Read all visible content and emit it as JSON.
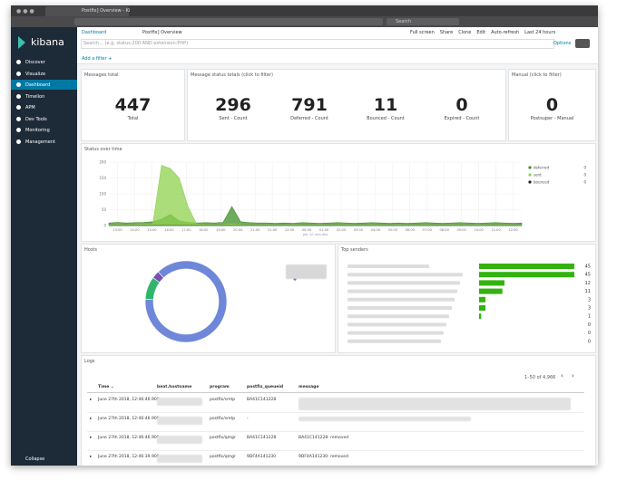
{
  "browser": {
    "tab_title": "Postfix] Overview - Ki",
    "search": "Search"
  },
  "sidebar": {
    "brand": "kibana",
    "items": [
      "Discover",
      "Visualize",
      "Dashboard",
      "Timelion",
      "APM",
      "Dev Tools",
      "Monitoring",
      "Management"
    ],
    "active": 2,
    "collapse": "Collapse"
  },
  "topbar": {
    "breadcrumb": "Dashboard",
    "title": "Postfix] Overview",
    "actions": [
      "Full screen",
      "Share",
      "Clone",
      "Edit",
      "Auto-refresh",
      "Last 24 hours"
    ],
    "search_placeholder": "Search... (e.g. status:200 AND extension:PHP)",
    "options": "Options",
    "add_filter": "Add a filter +"
  },
  "panels": {
    "messages_total": {
      "title": "Messages total",
      "value": 447,
      "label": "Total"
    },
    "status_totals": {
      "title": "Message status totals (click to filter)",
      "metrics": [
        {
          "value": 296,
          "label": "Sent - Count"
        },
        {
          "value": 791,
          "label": "Deferred - Count"
        },
        {
          "value": 11,
          "label": "Bounced - Count"
        },
        {
          "value": 0,
          "label": "Expired - Count"
        }
      ]
    },
    "manual": {
      "title": "Manual (click to filter)",
      "value": 0,
      "label": "Postsuper - Manual"
    },
    "status_over_time": {
      "title": "Status over time",
      "type": "area",
      "x_label": "per 10 minutes",
      "categories": [
        "13:00",
        "14:00",
        "15:00",
        "16:00",
        "17:00",
        "18:00",
        "19:00",
        "20:00",
        "21:00",
        "22:00",
        "23:00",
        "00:00",
        "01:00",
        "02:00",
        "03:00",
        "04:00",
        "05:00",
        "06:00",
        "07:00",
        "08:00",
        "09:00",
        "10:00",
        "11:00",
        "12:00"
      ],
      "ylim": [
        0,
        200
      ],
      "yticks": [
        0,
        50,
        100,
        150,
        200
      ],
      "series": [
        {
          "name": "deferred",
          "color": "#3f8f2a",
          "legend_value": 0,
          "values": [
            8,
            10,
            8,
            9,
            10,
            12,
            20,
            35,
            15,
            10,
            8,
            9,
            8,
            10,
            60,
            12,
            9,
            8,
            8,
            7,
            8,
            7,
            9,
            8,
            7,
            8,
            9,
            8,
            7,
            8,
            9,
            8,
            7,
            8,
            7,
            8,
            9,
            8,
            7,
            8,
            9,
            8,
            7,
            8,
            9,
            8,
            7,
            8
          ]
        },
        {
          "name": "sent",
          "color": "#8fd14f",
          "legend_value": 0,
          "values": [
            2,
            3,
            2,
            3,
            4,
            5,
            190,
            180,
            150,
            60,
            4,
            3,
            2,
            3,
            5,
            3,
            2,
            2,
            3,
            2,
            2,
            3,
            2,
            2,
            3,
            2,
            2,
            3,
            2,
            2,
            3,
            2,
            2,
            3,
            2,
            2,
            3,
            2,
            2,
            3,
            2,
            2,
            3,
            2,
            2,
            3,
            2,
            2
          ]
        },
        {
          "name": "bounced",
          "color": "#222222",
          "legend_value": 0,
          "values": [
            0,
            0,
            0,
            0,
            0,
            0,
            0,
            0,
            0,
            0,
            0,
            0,
            0,
            0,
            0,
            0,
            0,
            0,
            0,
            0,
            0,
            0,
            0,
            0,
            0,
            0,
            0,
            0,
            0,
            0,
            0,
            0,
            0,
            0,
            0,
            0,
            0,
            0,
            0,
            0,
            0,
            0,
            0,
            0,
            0,
            0,
            0,
            0
          ]
        }
      ]
    },
    "hosts": {
      "title": "Hosts",
      "type": "pie",
      "values": [
        88,
        9,
        3
      ],
      "colors": [
        "#6f87d8",
        "#2fb56c",
        "#7a4fb3"
      ]
    },
    "top_senders": {
      "title": "Top senders",
      "type": "bar",
      "color": "#32b30f",
      "values": [
        45,
        45,
        12,
        11,
        3,
        3,
        1,
        0,
        0,
        0
      ]
    },
    "logs": {
      "title": "Logs",
      "pagination": "1–50 of 4,966",
      "columns": [
        "Time ⌄",
        "beat.hostname",
        "program",
        "postfix_queueid",
        "message"
      ],
      "rows": [
        {
          "time": "June 27th 2018, 12:46:46.909",
          "program": "postfix/smtp",
          "queueid": "BA41C141228"
        },
        {
          "time": "June 27th 2018, 12:46:46.909",
          "program": "postfix/smtp",
          "queueid": "-"
        },
        {
          "time": "June 27th 2018, 12:46:46.909",
          "program": "postfix/qmgr",
          "queueid": "BA41C141228",
          "message": "BA41C141228: removed"
        },
        {
          "time": "June 27th 2018, 12:46:39.908",
          "program": "postfix/qmgr",
          "queueid": "9DF4A141230",
          "message": "9DF4A141230: removed"
        }
      ]
    }
  }
}
